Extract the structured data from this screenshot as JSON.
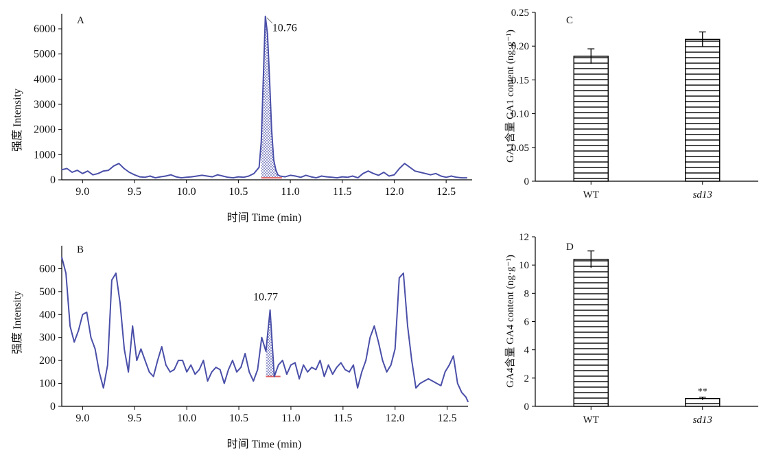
{
  "colors": {
    "trace": "#4a4fa8",
    "baseline": "#e06060",
    "bar_stroke": "#000000"
  },
  "chart_data": [
    {
      "panel": "A",
      "type": "line",
      "xlabel": "时间 Time (min)",
      "ylabel": "强度 Intensity",
      "xlim": [
        8.8,
        12.75
      ],
      "ylim": [
        0,
        6600
      ],
      "xticks": [
        9.0,
        9.5,
        10.0,
        10.5,
        11.0,
        11.5,
        12.0,
        12.5
      ],
      "yticks": [
        0,
        1000,
        2000,
        3000,
        4000,
        5000,
        6000
      ],
      "grid": false,
      "peak": {
        "label": "10.76",
        "time": 10.76,
        "height": 6500,
        "start": 10.72,
        "end": 10.88,
        "baseline": 80
      },
      "x": [
        8.8,
        8.85,
        8.9,
        8.95,
        9.0,
        9.05,
        9.1,
        9.15,
        9.2,
        9.25,
        9.3,
        9.35,
        9.4,
        9.45,
        9.5,
        9.55,
        9.6,
        9.65,
        9.7,
        9.75,
        9.8,
        9.85,
        9.9,
        9.95,
        10.0,
        10.05,
        10.1,
        10.15,
        10.2,
        10.25,
        10.3,
        10.35,
        10.4,
        10.45,
        10.5,
        10.55,
        10.6,
        10.65,
        10.7,
        10.72,
        10.74,
        10.76,
        10.78,
        10.8,
        10.82,
        10.84,
        10.86,
        10.88,
        10.9,
        10.95,
        11.0,
        11.05,
        11.1,
        11.15,
        11.2,
        11.25,
        11.3,
        11.35,
        11.4,
        11.45,
        11.5,
        11.55,
        11.6,
        11.65,
        11.7,
        11.75,
        11.8,
        11.85,
        11.9,
        11.95,
        12.0,
        12.05,
        12.1,
        12.15,
        12.2,
        12.25,
        12.3,
        12.35,
        12.4,
        12.45,
        12.5,
        12.55,
        12.6,
        12.65,
        12.7
      ],
      "y": [
        400,
        450,
        300,
        380,
        250,
        350,
        200,
        250,
        350,
        380,
        550,
        650,
        450,
        300,
        200,
        120,
        100,
        150,
        80,
        120,
        150,
        200,
        120,
        80,
        100,
        120,
        150,
        180,
        150,
        120,
        200,
        150,
        100,
        80,
        120,
        100,
        150,
        250,
        500,
        1500,
        4000,
        6500,
        5800,
        4000,
        2000,
        800,
        400,
        200,
        150,
        120,
        180,
        150,
        100,
        180,
        120,
        80,
        150,
        120,
        100,
        80,
        120,
        100,
        150,
        80,
        250,
        350,
        250,
        180,
        300,
        150,
        200,
        450,
        650,
        500,
        350,
        300,
        250,
        200,
        250,
        150,
        100,
        150,
        100,
        80,
        80
      ]
    },
    {
      "panel": "B",
      "type": "line",
      "xlabel": "时间 Time (min)",
      "ylabel": "强度 Intensity",
      "xlim": [
        8.8,
        12.7
      ],
      "ylim": [
        0,
        700
      ],
      "xticks": [
        9.0,
        9.5,
        10.0,
        10.5,
        11.0,
        11.5,
        12.0,
        12.5
      ],
      "yticks": [
        0,
        100,
        200,
        300,
        400,
        500,
        600
      ],
      "grid": false,
      "peak": {
        "label": "10.77",
        "time": 10.77,
        "height": 420,
        "start": 10.76,
        "end": 10.86,
        "baseline": 130
      },
      "x": [
        8.8,
        8.84,
        8.88,
        8.92,
        8.96,
        9.0,
        9.04,
        9.08,
        9.12,
        9.16,
        9.2,
        9.24,
        9.28,
        9.32,
        9.36,
        9.4,
        9.44,
        9.48,
        9.52,
        9.56,
        9.6,
        9.64,
        9.68,
        9.72,
        9.76,
        9.8,
        9.84,
        9.88,
        9.92,
        9.96,
        10.0,
        10.04,
        10.08,
        10.12,
        10.16,
        10.2,
        10.24,
        10.28,
        10.32,
        10.36,
        10.4,
        10.44,
        10.48,
        10.52,
        10.56,
        10.6,
        10.64,
        10.68,
        10.72,
        10.76,
        10.8,
        10.84,
        10.88,
        10.92,
        10.96,
        11.0,
        11.04,
        11.08,
        11.12,
        11.16,
        11.2,
        11.24,
        11.28,
        11.32,
        11.36,
        11.4,
        11.44,
        11.48,
        11.52,
        11.56,
        11.6,
        11.64,
        11.68,
        11.72,
        11.76,
        11.8,
        11.84,
        11.88,
        11.92,
        11.96,
        12.0,
        12.04,
        12.08,
        12.12,
        12.16,
        12.2,
        12.24,
        12.28,
        12.32,
        12.36,
        12.4,
        12.44,
        12.48,
        12.52,
        12.56,
        12.6,
        12.64,
        12.68,
        12.7
      ],
      "y": [
        650,
        580,
        350,
        280,
        330,
        400,
        410,
        300,
        250,
        150,
        80,
        180,
        550,
        580,
        450,
        250,
        150,
        350,
        200,
        250,
        200,
        150,
        130,
        200,
        260,
        180,
        150,
        160,
        200,
        200,
        150,
        180,
        140,
        160,
        200,
        110,
        150,
        170,
        160,
        100,
        160,
        200,
        150,
        170,
        230,
        150,
        110,
        160,
        300,
        240,
        420,
        130,
        180,
        200,
        140,
        180,
        190,
        120,
        180,
        150,
        170,
        160,
        200,
        130,
        180,
        140,
        170,
        190,
        160,
        150,
        180,
        80,
        150,
        200,
        300,
        350,
        280,
        200,
        150,
        180,
        250,
        560,
        580,
        350,
        200,
        80,
        100,
        110,
        120,
        110,
        100,
        90,
        150,
        180,
        220,
        100,
        60,
        40,
        20
      ]
    },
    {
      "panel": "C",
      "type": "bar",
      "categories": [
        "WT",
        "sd13"
      ],
      "values": [
        0.185,
        0.21
      ],
      "errors": [
        0.011,
        0.011
      ],
      "ylabel": "GA1含量 GA1 content (ng·g⁻¹)",
      "ylim": [
        0,
        0.25
      ],
      "yticks": [
        "0",
        "0.05",
        "0.10",
        "0.15",
        "0.20",
        "0.25"
      ],
      "pattern": "horizontal-stripes",
      "grid": false
    },
    {
      "panel": "D",
      "type": "bar",
      "categories": [
        "WT",
        "sd13"
      ],
      "values": [
        10.4,
        0.55
      ],
      "errors": [
        0.6,
        0.1
      ],
      "significance": [
        "",
        "**"
      ],
      "ylabel": "GA4含量 GA4 content (ng·g⁻¹)",
      "ylim": [
        0,
        12
      ],
      "yticks": [
        "0",
        "2",
        "4",
        "6",
        "8",
        "10",
        "12"
      ],
      "pattern": "horizontal-stripes",
      "grid": false
    }
  ]
}
